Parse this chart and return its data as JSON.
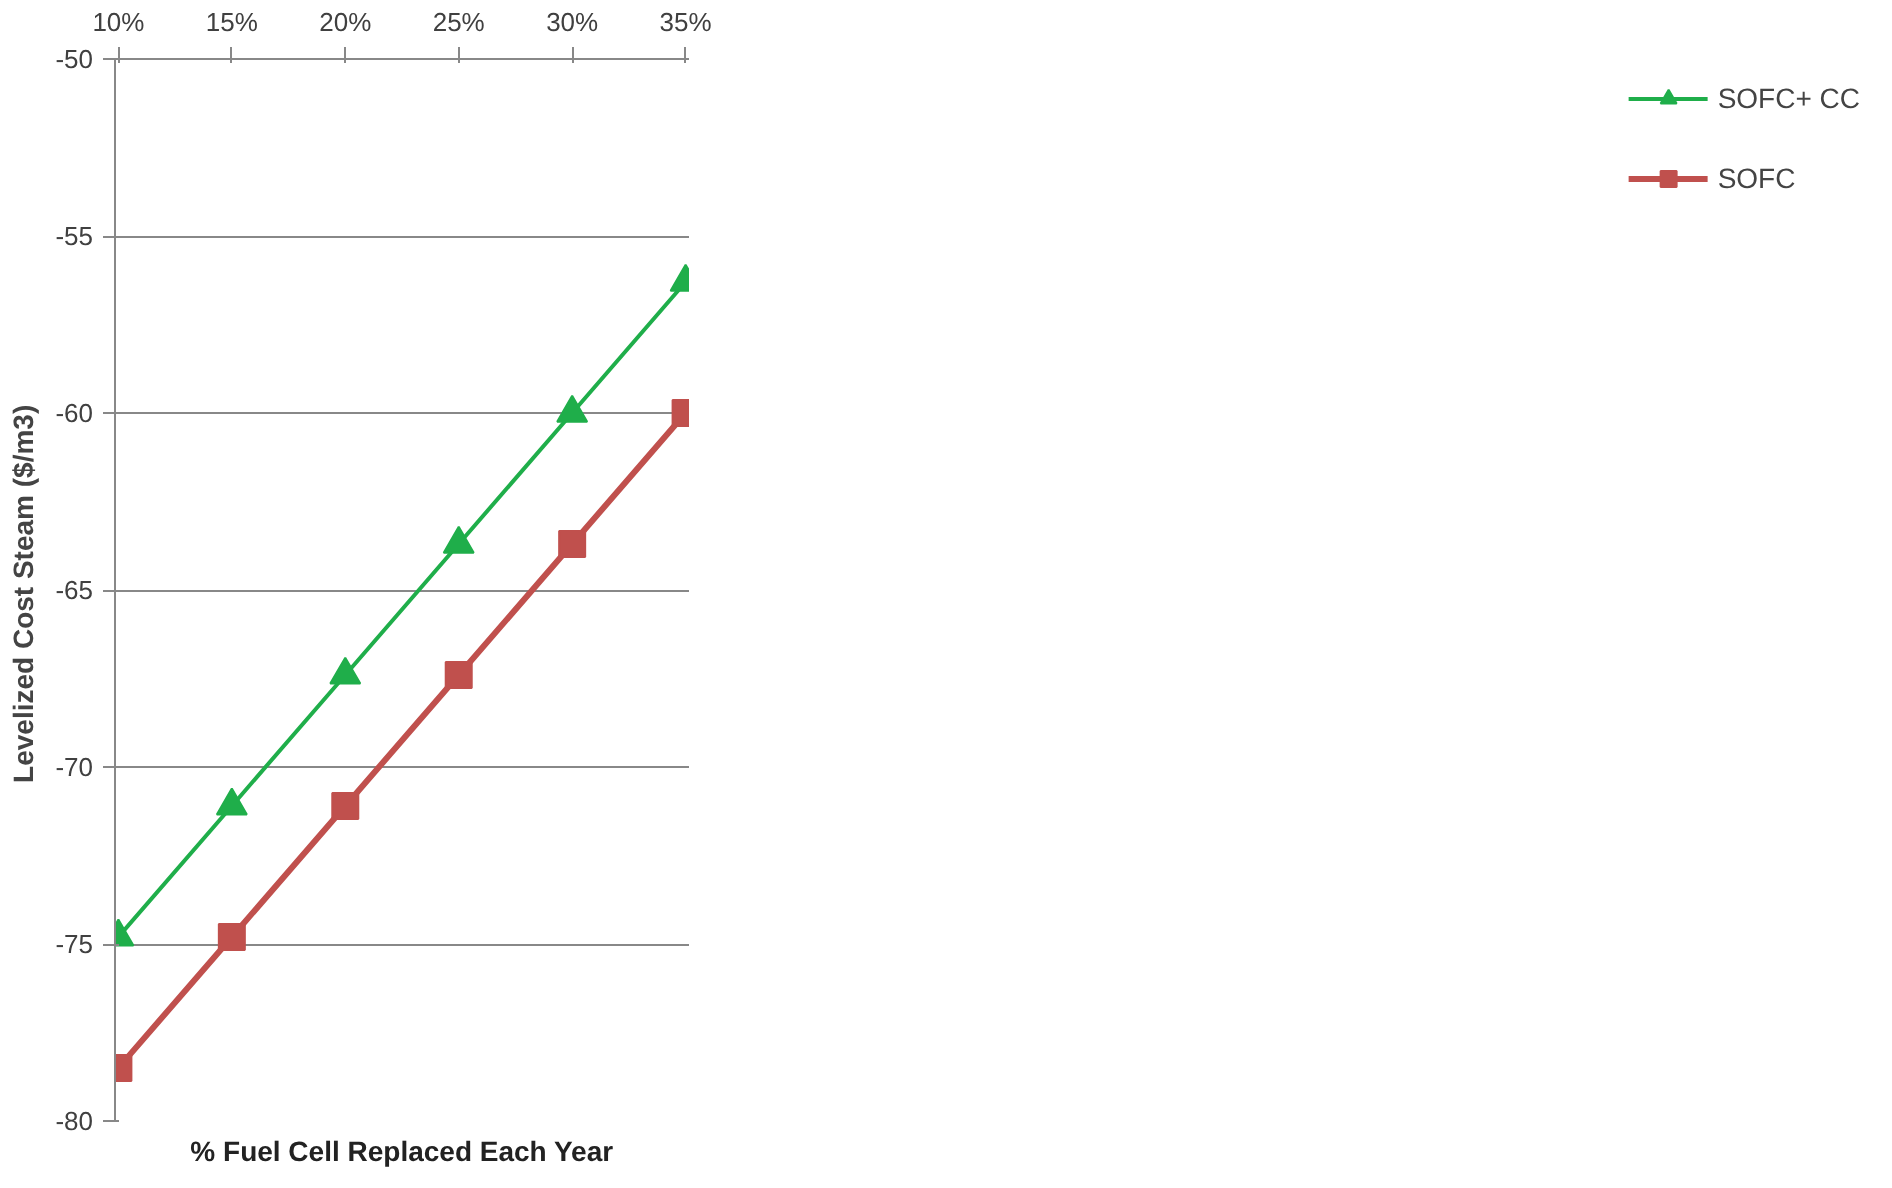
{
  "chart_data": {
    "type": "line",
    "xlabel": "% Fuel Cell Replaced Each Year",
    "ylabel": "Levelized Cost  Steam ($/m3)",
    "categories": [
      "10%",
      "15%",
      "20%",
      "25%",
      "30%",
      "35%"
    ],
    "series": [
      {
        "name": "SOFC+ CC",
        "color": "#1fae4a",
        "marker": "triangle",
        "values": [
          -74.8,
          -71.1,
          -67.4,
          -63.7,
          -60.0,
          -56.3
        ]
      },
      {
        "name": "SOFC",
        "color": "#c0504d",
        "marker": "square",
        "values": [
          -78.5,
          -74.8,
          -71.1,
          -67.4,
          -63.7,
          -60.0
        ]
      }
    ],
    "ylim": [
      -80,
      -50
    ],
    "yticks": [
      -50,
      -55,
      -60,
      -65,
      -70,
      -75,
      -80
    ],
    "grid": "y",
    "legend": "right"
  }
}
